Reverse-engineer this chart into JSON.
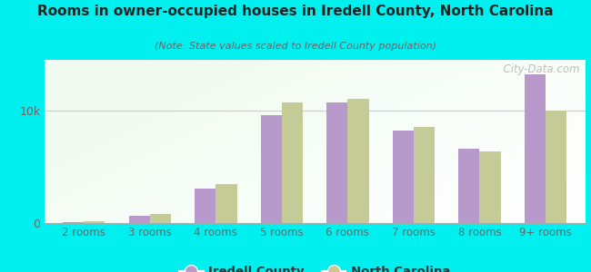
{
  "title": "Rooms in owner-occupied houses in Iredell County, North Carolina",
  "subtitle": "(Note: State values scaled to Iredell County population)",
  "categories": [
    "2 rooms",
    "3 rooms",
    "4 rooms",
    "5 rooms",
    "6 rooms",
    "7 rooms",
    "8 rooms",
    "9+ rooms"
  ],
  "iredell_values": [
    120,
    680,
    3100,
    9600,
    10700,
    8200,
    6600,
    13200
  ],
  "nc_values": [
    180,
    820,
    3500,
    10700,
    11000,
    8500,
    6400,
    10000
  ],
  "iredell_color": "#b899cc",
  "nc_color": "#c5cb96",
  "background_color": "#00f0f0",
  "ylabel_tick": "10k",
  "ytick_val": 10000,
  "ymax": 14500,
  "bar_width": 0.32,
  "watermark": "  City-Data.com",
  "legend_iredell": "Iredell County",
  "legend_nc": "North Carolina"
}
